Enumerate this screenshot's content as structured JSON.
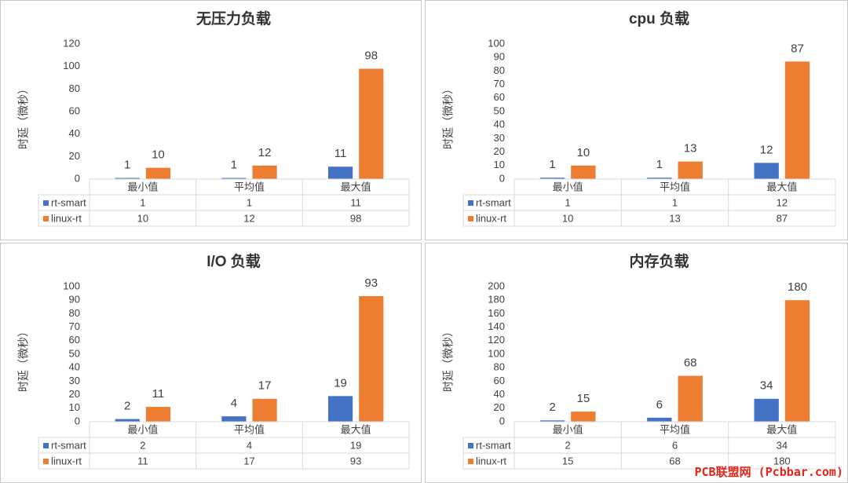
{
  "colors": {
    "rt_smart": "#4472c4",
    "linux_rt": "#ed7d31",
    "grid": "#d9d9d9",
    "text": "#404040",
    "title": "#333333"
  },
  "watermark": "PCB联盟网 (Pcbbar.com)",
  "chart_data": [
    {
      "type": "bar",
      "title": "无压力负载",
      "ylabel": "时延（微秒）",
      "xlabel": "",
      "categories": [
        "最小值",
        "平均值",
        "最大值"
      ],
      "series": [
        {
          "name": "rt-smart",
          "values": [
            1,
            1,
            11
          ]
        },
        {
          "name": "linux-rt",
          "values": [
            10,
            12,
            98
          ]
        }
      ],
      "ylim": [
        0,
        120
      ],
      "ytick_step": 20,
      "grid": false,
      "legend": "data-table"
    },
    {
      "type": "bar",
      "title": "cpu 负载",
      "ylabel": "时延（微秒）",
      "xlabel": "",
      "categories": [
        "最小值",
        "平均值",
        "最大值"
      ],
      "series": [
        {
          "name": "rt-smart",
          "values": [
            1,
            1,
            12
          ]
        },
        {
          "name": "linux-rt",
          "values": [
            10,
            13,
            87
          ]
        }
      ],
      "ylim": [
        0,
        100
      ],
      "ytick_step": 10,
      "grid": false,
      "legend": "data-table"
    },
    {
      "type": "bar",
      "title": "I/O 负载",
      "ylabel": "时延（微秒）",
      "xlabel": "",
      "categories": [
        "最小值",
        "平均值",
        "最大值"
      ],
      "series": [
        {
          "name": "rt-smart",
          "values": [
            2,
            4,
            19
          ]
        },
        {
          "name": "linux-rt",
          "values": [
            11,
            17,
            93
          ]
        }
      ],
      "ylim": [
        0,
        100
      ],
      "ytick_step": 10,
      "grid": false,
      "legend": "data-table"
    },
    {
      "type": "bar",
      "title": "内存负载",
      "ylabel": "时延（微秒）",
      "xlabel": "",
      "categories": [
        "最小值",
        "平均值",
        "最大值"
      ],
      "series": [
        {
          "name": "rt-smart",
          "values": [
            2,
            6,
            34
          ]
        },
        {
          "name": "linux-rt",
          "values": [
            15,
            68,
            180
          ]
        }
      ],
      "ylim": [
        0,
        200
      ],
      "ytick_step": 20,
      "grid": false,
      "legend": "data-table"
    }
  ]
}
